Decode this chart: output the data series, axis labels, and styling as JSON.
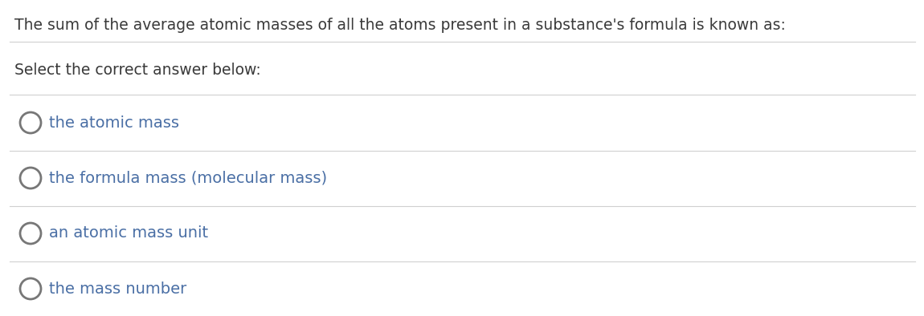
{
  "question": "The sum of the average atomic masses of all the atoms present in a substance's formula is known as:",
  "prompt": "Select the correct answer below:",
  "options": [
    "the atomic mass",
    "the formula mass (molecular mass)",
    "an atomic mass unit",
    "the mass number"
  ],
  "bg_color": "#ffffff",
  "question_color": "#3a3a3a",
  "prompt_color": "#3a3a3a",
  "option_color": "#4a6fa5",
  "line_color": "#d0d0d0",
  "question_fontsize": 13.5,
  "prompt_fontsize": 13.5,
  "option_fontsize": 14.0,
  "circle_color": "#ffffff",
  "circle_edge_color": "#777777",
  "circle_linewidth": 2.0
}
